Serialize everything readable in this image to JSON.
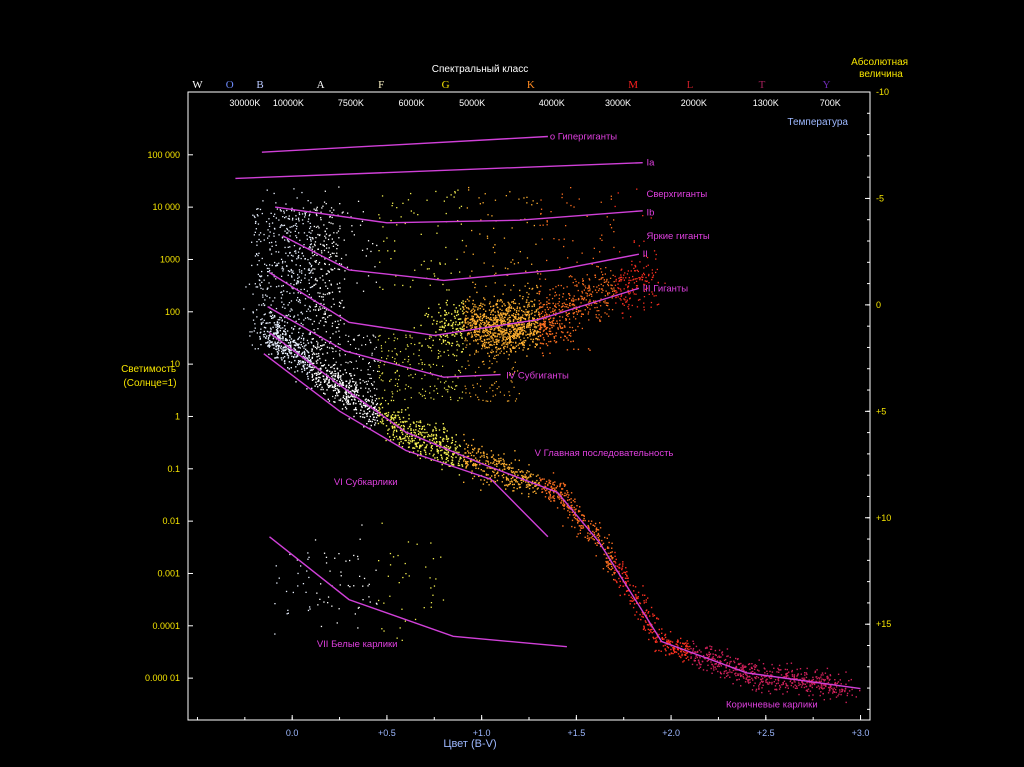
{
  "chart_data": {
    "type": "scatter",
    "title": "Спектральный класс",
    "xlabel": "Цвет (B-V)",
    "ylabel": "Светимость\n(Солнце=1)",
    "ylabel_right": "Абсолютная\nвеличина",
    "top_temperature_label": "Температура",
    "xlim": [
      -0.55,
      3.05
    ],
    "ylim_log10_luminosity": [
      -5.8,
      6.2
    ],
    "ylim_abs_mag": [
      19.5,
      -10.0
    ],
    "grid": false,
    "x_ticks": [
      {
        "v": 0.0,
        "label": "0.0"
      },
      {
        "v": 0.5,
        "label": "+0.5"
      },
      {
        "v": 1.0,
        "label": "+1.0"
      },
      {
        "v": 1.5,
        "label": "+1.5"
      },
      {
        "v": 2.0,
        "label": "+2.0"
      },
      {
        "v": 2.5,
        "label": "+2.5"
      },
      {
        "v": 3.0,
        "label": "+3.0"
      }
    ],
    "y_ticks_luminosity": [
      {
        "log": 5,
        "label": "100 000"
      },
      {
        "log": 4,
        "label": "10 000"
      },
      {
        "log": 3,
        "label": "1000"
      },
      {
        "log": 2,
        "label": "100"
      },
      {
        "log": 1,
        "label": "10"
      },
      {
        "log": 0,
        "label": "1"
      },
      {
        "log": -1,
        "label": "0.1"
      },
      {
        "log": -2,
        "label": "0.01"
      },
      {
        "log": -3,
        "label": "0.001"
      },
      {
        "log": -4,
        "label": "0.0001"
      },
      {
        "log": -5,
        "label": "0.000 01"
      }
    ],
    "y_ticks_abs_mag": [
      {
        "mag": -10,
        "label": "-10"
      },
      {
        "mag": -5,
        "label": "-5"
      },
      {
        "mag": 0,
        "label": "0"
      },
      {
        "mag": 5,
        "label": "+5"
      },
      {
        "mag": 10,
        "label": "+10"
      },
      {
        "mag": 15,
        "label": "+15"
      }
    ],
    "spectral_classes": [
      {
        "label": "W",
        "bv": -0.5,
        "color": "#ffffff"
      },
      {
        "label": "O",
        "bv": -0.33,
        "color": "#6f8cff"
      },
      {
        "label": "B",
        "bv": -0.17,
        "color": "#b9c8ff"
      },
      {
        "label": "A",
        "bv": 0.15,
        "color": "#ffffff"
      },
      {
        "label": "F",
        "bv": 0.47,
        "color": "#fff6c8"
      },
      {
        "label": "G",
        "bv": 0.81,
        "color": "#f5e400"
      },
      {
        "label": "K",
        "bv": 1.26,
        "color": "#ff8a20"
      },
      {
        "label": "M",
        "bv": 1.8,
        "color": "#ff2020"
      },
      {
        "label": "L",
        "bv": 2.1,
        "color": "#c81e28"
      },
      {
        "label": "T",
        "bv": 2.48,
        "color": "#a8205c"
      },
      {
        "label": "Y",
        "bv": 2.82,
        "color": "#6a2ab0"
      }
    ],
    "temperatures": [
      {
        "label": "30000K",
        "bv": -0.25
      },
      {
        "label": "10000K",
        "bv": -0.02
      },
      {
        "label": "7500K",
        "bv": 0.31
      },
      {
        "label": "6000K",
        "bv": 0.63
      },
      {
        "label": "5000K",
        "bv": 0.95
      },
      {
        "label": "4000K",
        "bv": 1.37
      },
      {
        "label": "3000K",
        "bv": 1.72
      },
      {
        "label": "2000K",
        "bv": 2.12
      },
      {
        "label": "1300K",
        "bv": 2.5
      },
      {
        "label": "700K",
        "bv": 2.84
      }
    ],
    "luminosity_classes": [
      {
        "name": "o  Гипергиганты",
        "line": [
          [
            -0.16,
            5.05
          ],
          [
            1.35,
            5.35
          ]
        ],
        "label_at": [
          1.36,
          5.35
        ]
      },
      {
        "name": "Ia",
        "line": [
          [
            -0.3,
            4.55
          ],
          [
            1.85,
            4.85
          ]
        ],
        "label_at": [
          1.87,
          4.85
        ]
      },
      {
        "name": "Сверхгиганты",
        "line": [],
        "label_at": [
          1.87,
          4.25
        ]
      },
      {
        "name": "Ib",
        "line": [
          [
            -0.09,
            4.0
          ],
          [
            0.5,
            3.7
          ],
          [
            1.2,
            3.75
          ],
          [
            1.85,
            3.93
          ]
        ],
        "label_at": [
          1.87,
          3.9
        ]
      },
      {
        "name": "Яркие гиганты",
        "line": [],
        "label_at": [
          1.87,
          3.45
        ]
      },
      {
        "name": "II",
        "line": [
          [
            -0.05,
            3.45
          ],
          [
            0.3,
            2.8
          ],
          [
            0.8,
            2.6
          ],
          [
            1.4,
            2.8
          ],
          [
            1.83,
            3.1
          ]
        ],
        "label_at": [
          1.85,
          3.1
        ]
      },
      {
        "name": "III  Гиганты",
        "line": [
          [
            -0.12,
            2.75
          ],
          [
            0.3,
            1.8
          ],
          [
            0.75,
            1.55
          ],
          [
            1.3,
            1.85
          ],
          [
            1.83,
            2.45
          ]
        ],
        "label_at": [
          1.85,
          2.45
        ]
      },
      {
        "name": "IV  Субгиганты",
        "line": [
          [
            -0.13,
            2.1
          ],
          [
            0.28,
            1.25
          ],
          [
            0.8,
            0.75
          ],
          [
            1.1,
            0.8
          ]
        ],
        "label_at": [
          1.13,
          0.78
        ]
      },
      {
        "name": "V  Главная последовательность",
        "line": [
          [
            -0.12,
            1.6
          ],
          [
            0.25,
            0.6
          ],
          [
            0.6,
            -0.3
          ],
          [
            1.0,
            -0.9
          ],
          [
            1.4,
            -1.45
          ],
          [
            1.62,
            -2.4
          ],
          [
            1.95,
            -4.3
          ],
          [
            2.4,
            -4.9
          ],
          [
            3.0,
            -5.2
          ]
        ],
        "label_at": [
          1.28,
          -0.7
        ]
      },
      {
        "name": "VI  Субкарлики",
        "line": [
          [
            -0.15,
            1.2
          ],
          [
            0.25,
            0.1
          ],
          [
            0.6,
            -0.65
          ],
          [
            1.05,
            -1.2
          ],
          [
            1.35,
            -2.3
          ]
        ],
        "label_at": [
          0.22,
          -1.25
        ]
      },
      {
        "name": "VII  Белые карлики",
        "line": [
          [
            -0.12,
            -2.3
          ],
          [
            0.3,
            -3.5
          ],
          [
            0.85,
            -4.2
          ],
          [
            1.45,
            -4.4
          ]
        ],
        "label_at": [
          0.13,
          -4.35
        ]
      },
      {
        "name": "Коричневые карлики",
        "line": [],
        "label_at": [
          2.29,
          -5.5
        ]
      }
    ]
  }
}
